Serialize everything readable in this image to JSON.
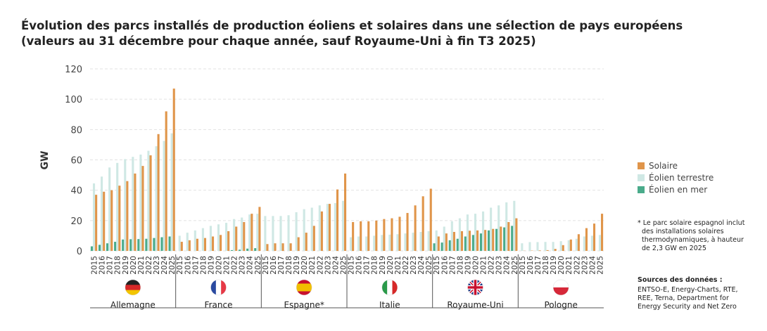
{
  "chart_data": {
    "type": "bar",
    "title": "Évolution des parcs installés de production éoliens et solaires dans une sélection de pays européens",
    "subtitle": "(valeurs au 31 décembre pour chaque année, sauf Royaume-Uni à fin T3 2025)",
    "y_label": "GW",
    "groups": [
      "Allemagne",
      "France",
      "Espagne*",
      "Italie",
      "Royaume-Uni",
      "Pologne"
    ],
    "categories": [
      "2015",
      "2016",
      "2017",
      "2018",
      "2019",
      "2020",
      "2021",
      "2022",
      "2023",
      "2024",
      "2025"
    ],
    "ylim": [
      0,
      120
    ],
    "yticks": [
      0,
      20,
      40,
      60,
      80,
      100,
      120
    ],
    "grid": true,
    "series": [
      {
        "name": "Solaire",
        "color": "#e0954a",
        "values": [
          [
            37,
            39,
            40,
            43,
            46,
            51,
            56,
            63,
            77,
            92,
            107
          ],
          [
            6,
            7,
            8,
            8.5,
            9.5,
            10.5,
            13,
            16,
            19,
            24.5,
            29
          ],
          [
            4.5,
            5,
            5,
            5,
            9,
            12,
            16.5,
            26,
            31,
            40.5,
            51
          ],
          [
            19,
            19.5,
            19.5,
            20,
            21,
            21.5,
            22.5,
            25,
            30,
            36,
            41
          ],
          [
            9.5,
            11.5,
            12.5,
            13,
            13.3,
            13.5,
            13.8,
            14.5,
            16,
            19,
            21.5
          ],
          [
            0.1,
            0.2,
            0.3,
            0.5,
            1.3,
            3.8,
            7.5,
            11,
            15,
            18,
            24.5
          ]
        ]
      },
      {
        "name": "Éolien terrestre",
        "color": "#cfe8e4",
        "values": [
          [
            44.5,
            49,
            55,
            58,
            60.5,
            62,
            63.5,
            66,
            69,
            72.5,
            77.5
          ],
          [
            10,
            12,
            13.5,
            15,
            16.5,
            17.5,
            18.5,
            21,
            22,
            24,
            24.5
          ],
          [
            23,
            23,
            23,
            23.5,
            25.5,
            27.5,
            28.5,
            30,
            31,
            31.5,
            33
          ],
          [
            9,
            9.5,
            9.5,
            10,
            10.5,
            10.7,
            11,
            11.5,
            12,
            12.5,
            13
          ],
          [
            13.5,
            16,
            19.5,
            21.5,
            24,
            24.5,
            26,
            28.5,
            30,
            32,
            33
          ],
          [
            5,
            5.8,
            5.8,
            5.9,
            5.9,
            6.4,
            7,
            8,
            9.5,
            10,
            10.5
          ]
        ]
      },
      {
        "name": "Éolien en mer",
        "color": "#4aab8b",
        "values": [
          [
            3,
            4,
            5,
            6,
            7.5,
            7.7,
            7.8,
            8,
            8.5,
            9,
            9.5
          ],
          [
            0,
            0,
            0,
            0,
            0,
            0,
            0,
            0.5,
            0.8,
            1.5,
            1.8
          ],
          [
            0,
            0,
            0,
            0,
            0,
            0,
            0,
            0,
            0,
            0,
            0
          ],
          [
            0,
            0,
            0,
            0,
            0,
            0,
            0,
            0,
            0,
            0,
            0
          ],
          [
            5,
            5.5,
            7,
            8,
            9.5,
            10.5,
            11.5,
            13.5,
            14.5,
            15.5,
            16.5
          ],
          [
            0,
            0,
            0,
            0,
            0,
            0,
            0,
            0,
            0,
            0,
            0
          ]
        ]
      }
    ],
    "note": [
      "* Le parc solaire espagnol inclut",
      "des installations solaires",
      "thermodynamiques, à hauteur",
      "de 2,3 GW en 2025"
    ],
    "sources_title": "Sources des données :",
    "sources": [
      "ENTSO-E, Energy-Charts, RTE,",
      "REE, Terna, Department for",
      "Energy Security and Net Zero"
    ]
  }
}
